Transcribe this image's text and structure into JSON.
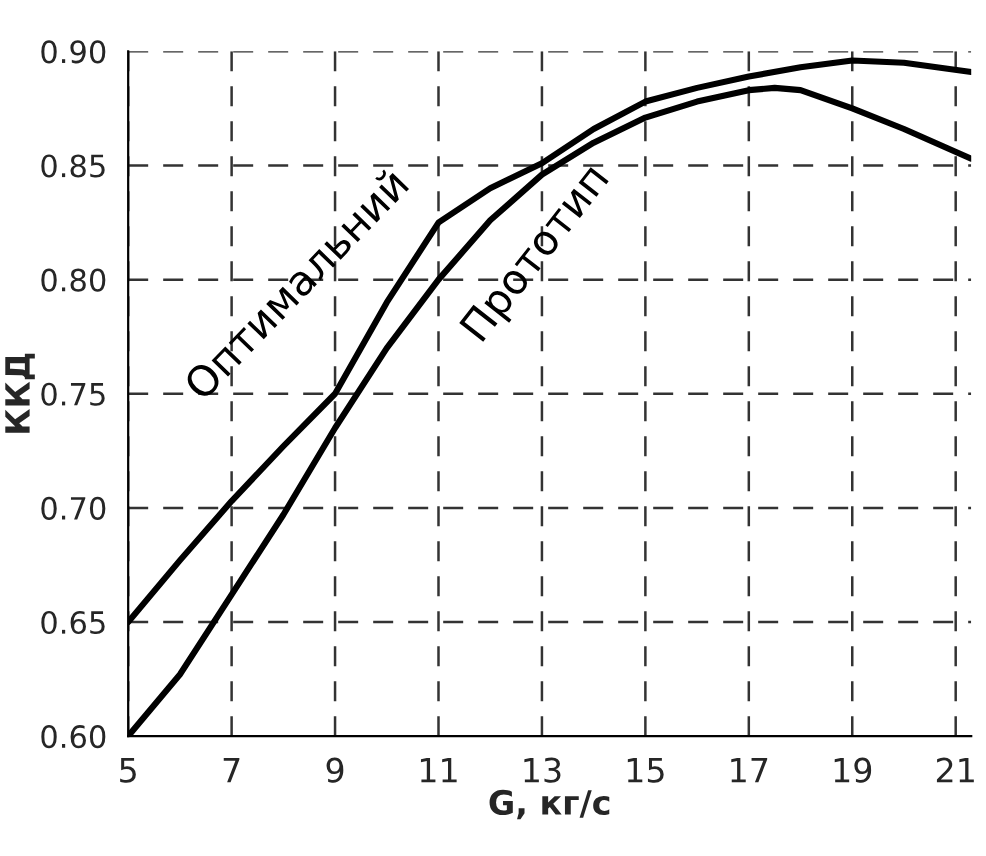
{
  "chart_data": {
    "type": "line",
    "xlabel": "G, кг/с",
    "ylabel": "ККД",
    "xlim": [
      5,
      21.3
    ],
    "xticks": [
      5,
      7,
      9,
      11,
      13,
      15,
      17,
      19,
      21
    ],
    "ylim": [
      0.6,
      0.9
    ],
    "yticks": [
      {
        "value": 0.6,
        "label": "0.60"
      },
      {
        "value": 0.65,
        "label": "0.65"
      },
      {
        "value": 0.7,
        "label": "0.70"
      },
      {
        "value": 0.75,
        "label": "0.75"
      },
      {
        "value": 0.8,
        "label": "0.80"
      },
      {
        "value": 0.85,
        "label": "0.85"
      },
      {
        "value": 0.9,
        "label": "0.90"
      }
    ],
    "grid": true,
    "legend": false,
    "marker": "none",
    "line_style": "solid",
    "series": [
      {
        "name": "Оптимальний",
        "color": "#000000",
        "x": [
          5,
          6,
          7,
          8,
          9,
          10,
          11,
          12,
          13,
          14,
          15,
          16,
          17,
          18,
          19,
          20,
          21.3
        ],
        "values": [
          0.65,
          0.677,
          0.703,
          0.727,
          0.75,
          0.79,
          0.825,
          0.84,
          0.851,
          0.866,
          0.878,
          0.884,
          0.889,
          0.893,
          0.896,
          0.895,
          0.891
        ]
      },
      {
        "name": "Прототип",
        "color": "#000000",
        "x": [
          5,
          6,
          7,
          8,
          9,
          10,
          11,
          12,
          13,
          14,
          15,
          16,
          17,
          17.5,
          18,
          19,
          20,
          21.3
        ],
        "values": [
          0.6,
          0.627,
          0.662,
          0.697,
          0.735,
          0.77,
          0.8,
          0.826,
          0.846,
          0.86,
          0.871,
          0.878,
          0.883,
          0.884,
          0.883,
          0.875,
          0.866,
          0.853
        ]
      }
    ]
  }
}
